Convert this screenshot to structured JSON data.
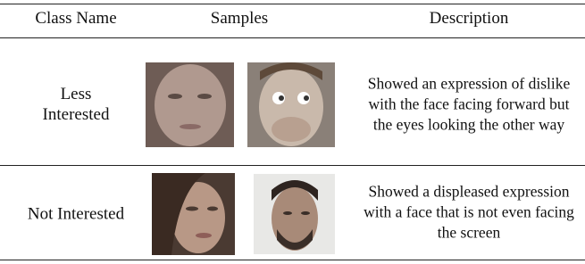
{
  "table": {
    "header": [
      "Class Name",
      "Samples",
      "Description"
    ],
    "rows": [
      {
        "class_name": "Less Interested",
        "description": "Showed an expression of dislike with the face facing forward but the eyes looking the other way"
      },
      {
        "class_name": "Not Interested",
        "description": "Showed a displeased expression with a face that is not even facing the screen"
      }
    ]
  }
}
